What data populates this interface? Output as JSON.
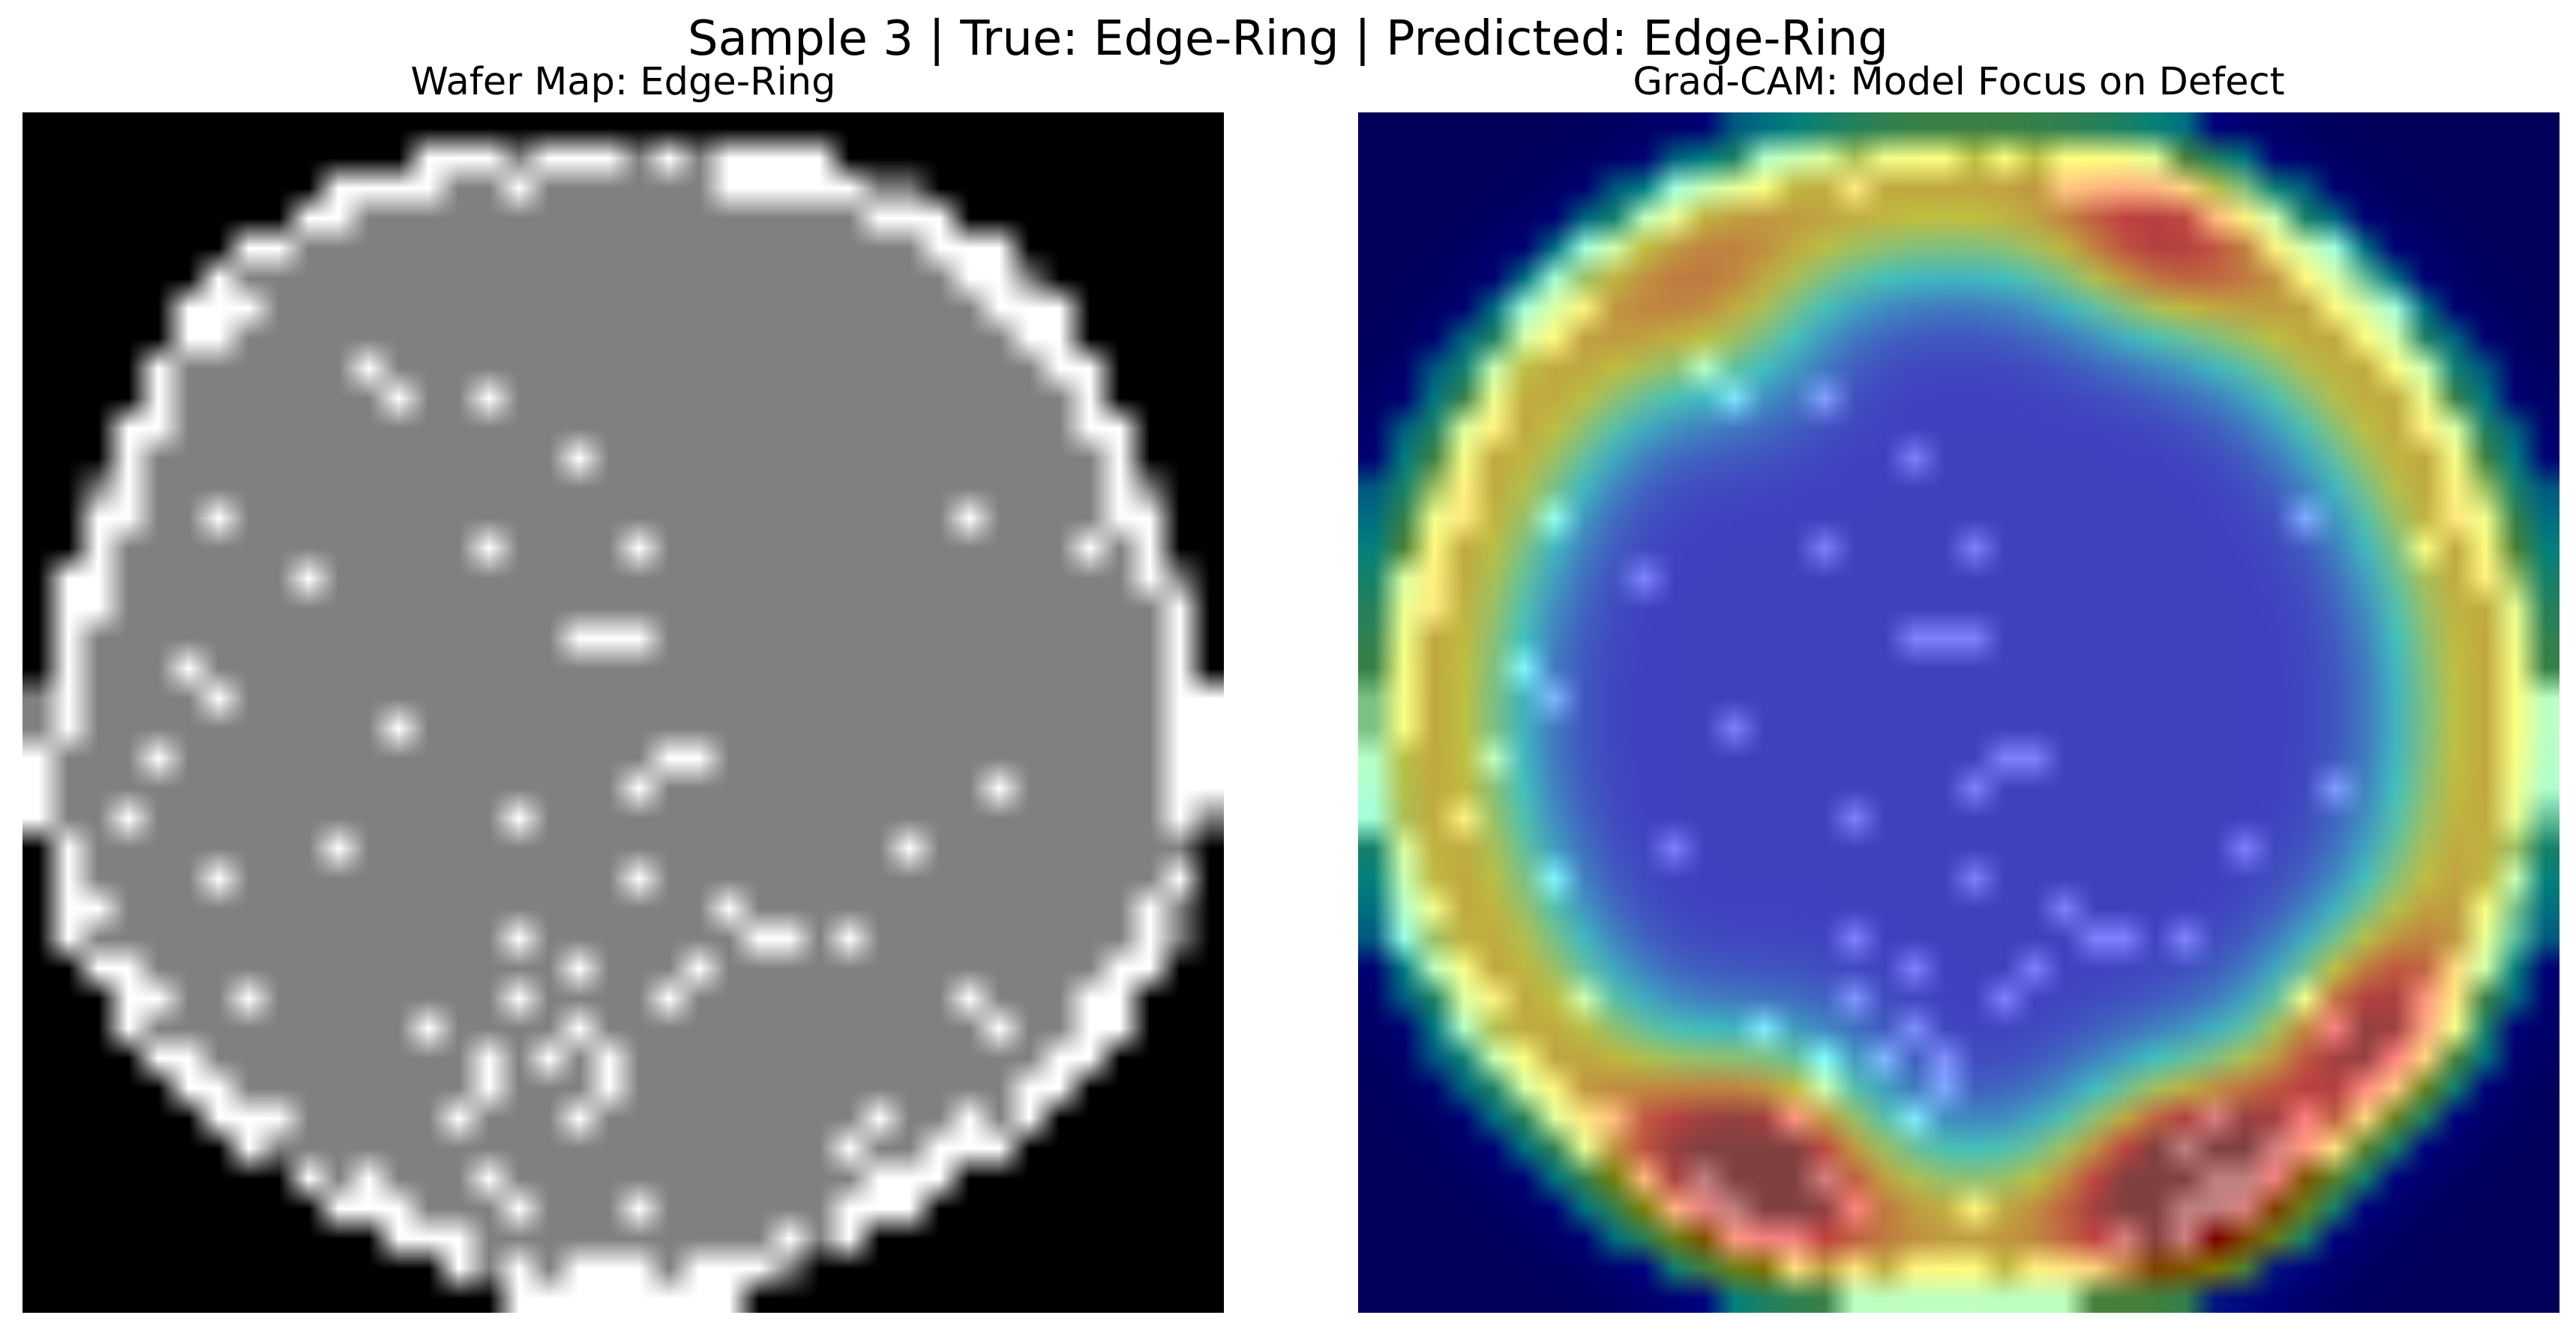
{
  "figure": {
    "suptitle": "Sample 3 | True: Edge-Ring | Predicted: Edge-Ring",
    "left_panel_title": "Wafer Map: Edge-Ring",
    "right_panel_title": "Grad-CAM: Model Focus on Defect"
  },
  "sample": {
    "index": 3,
    "true_label": "Edge-Ring",
    "predicted_label": "Edge-Ring"
  },
  "wafer_map": {
    "grid_size": 40,
    "colormap": "gray",
    "colors": {
      "background": "#000000",
      "die_pass": "#808080",
      "die_fail": "#ffffff"
    }
  },
  "gradcam": {
    "colormap": "jet",
    "overlay_alpha": 0.5
  }
}
